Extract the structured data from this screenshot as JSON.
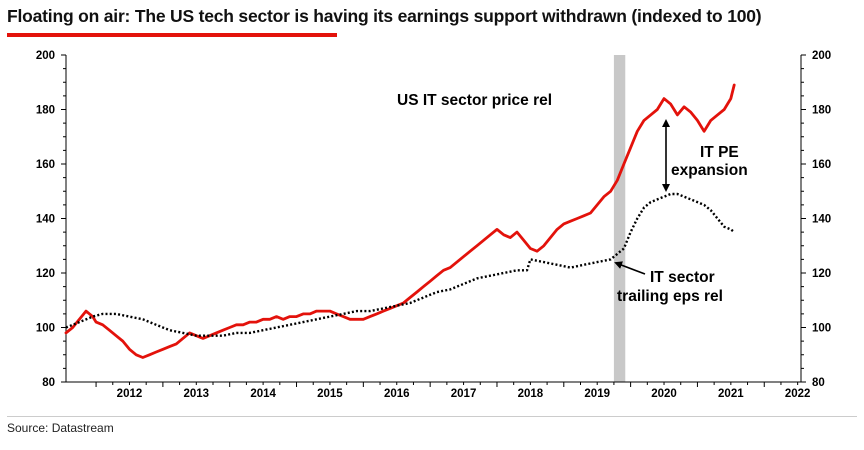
{
  "title": "Floating on air: The US tech sector is having its earnings support withdrawn (indexed to 100)",
  "source": "Source: Datastream",
  "colors": {
    "price": "#e3120b",
    "eps": "#000000",
    "shade": "#c8c8c8",
    "accent": "#e3120b"
  },
  "chart_data": {
    "type": "line",
    "title": "Floating on air: The US tech sector is having its earnings support withdrawn (indexed to 100)",
    "xlabel": "",
    "ylabel": "",
    "xlim": [
      2011.55,
      2022.55
    ],
    "ylim": [
      80,
      200
    ],
    "y_ticks": [
      80,
      100,
      120,
      140,
      160,
      180,
      200
    ],
    "x_tick_labels": [
      "2012",
      "2013",
      "2014",
      "2015",
      "2016",
      "2017",
      "2018",
      "2019",
      "2020",
      "2021",
      "2022"
    ],
    "dual_axis": true,
    "grid": false,
    "shaded_period": [
      2019.75,
      2019.92
    ],
    "series": [
      {
        "name": "US IT sector price rel",
        "style": "solid",
        "color": "#e3120b",
        "x": [
          2011.55,
          2011.65,
          2011.75,
          2011.85,
          2011.95,
          2012.0,
          2012.1,
          2012.2,
          2012.3,
          2012.4,
          2012.5,
          2012.6,
          2012.7,
          2012.8,
          2012.9,
          2013.0,
          2013.1,
          2013.2,
          2013.3,
          2013.4,
          2013.5,
          2013.6,
          2013.7,
          2013.8,
          2013.9,
          2014.0,
          2014.1,
          2014.2,
          2014.3,
          2014.4,
          2014.5,
          2014.6,
          2014.7,
          2014.8,
          2014.9,
          2015.0,
          2015.1,
          2015.2,
          2015.3,
          2015.4,
          2015.5,
          2015.6,
          2015.7,
          2015.8,
          2015.9,
          2016.0,
          2016.1,
          2016.2,
          2016.3,
          2016.4,
          2016.5,
          2016.6,
          2016.7,
          2016.8,
          2016.9,
          2017.0,
          2017.1,
          2017.2,
          2017.3,
          2017.4,
          2017.5,
          2017.6,
          2017.7,
          2017.8,
          2017.9,
          2018.0,
          2018.1,
          2018.2,
          2018.3,
          2018.4,
          2018.5,
          2018.6,
          2018.7,
          2018.8,
          2018.9,
          2019.0,
          2019.1,
          2019.2,
          2019.3,
          2019.4,
          2019.5,
          2019.6,
          2019.7,
          2019.8,
          2019.9,
          2020.0,
          2020.1,
          2020.2,
          2020.3,
          2020.4,
          2020.5,
          2020.6,
          2020.7,
          2020.8,
          2020.9,
          2021.0,
          2021.1,
          2021.2,
          2021.3,
          2021.4,
          2021.5,
          2021.55
        ],
        "values": [
          98,
          100,
          103,
          106,
          104,
          102,
          101,
          99,
          97,
          95,
          92,
          90,
          89,
          90,
          91,
          92,
          93,
          94,
          96,
          98,
          97,
          96,
          97,
          98,
          99,
          100,
          101,
          101,
          102,
          102,
          103,
          103,
          104,
          103,
          104,
          104,
          105,
          105,
          106,
          106,
          106,
          105,
          104,
          103,
          103,
          103,
          104,
          105,
          106,
          107,
          108,
          109,
          111,
          113,
          115,
          117,
          119,
          121,
          122,
          124,
          126,
          128,
          130,
          132,
          134,
          136,
          134,
          133,
          135,
          132,
          129,
          128,
          130,
          133,
          136,
          138,
          139,
          140,
          141,
          142,
          145,
          148,
          150,
          154,
          160,
          166,
          172,
          176,
          178,
          180,
          184,
          182,
          178,
          181,
          179,
          176,
          172,
          176,
          178,
          180,
          184,
          189
        ]
      },
      {
        "name": "IT sector trailing eps rel",
        "style": "dotted",
        "color": "#000000",
        "x": [
          2011.55,
          2011.75,
          2011.95,
          2012.1,
          2012.3,
          2012.5,
          2012.7,
          2012.9,
          2013.1,
          2013.3,
          2013.5,
          2013.7,
          2013.9,
          2014.1,
          2014.3,
          2014.5,
          2014.7,
          2014.9,
          2015.1,
          2015.3,
          2015.5,
          2015.7,
          2015.9,
          2016.1,
          2016.3,
          2016.5,
          2016.7,
          2016.9,
          2017.1,
          2017.3,
          2017.5,
          2017.7,
          2017.9,
          2018.1,
          2018.3,
          2018.45,
          2018.5,
          2018.7,
          2018.9,
          2019.1,
          2019.3,
          2019.5,
          2019.7,
          2019.8,
          2019.9,
          2020.0,
          2020.1,
          2020.2,
          2020.3,
          2020.4,
          2020.5,
          2020.6,
          2020.7,
          2020.8,
          2020.9,
          2021.0,
          2021.1,
          2021.2,
          2021.3,
          2021.4,
          2021.5,
          2021.55
        ],
        "values": [
          100,
          102,
          104,
          105,
          105,
          104,
          103,
          101,
          99,
          98,
          97,
          97,
          97,
          98,
          98,
          99,
          100,
          101,
          102,
          103,
          104,
          105,
          106,
          106,
          107,
          108,
          109,
          111,
          113,
          114,
          116,
          118,
          119,
          120,
          121,
          121,
          125,
          124,
          123,
          122,
          123,
          124,
          125,
          127,
          129,
          135,
          140,
          144,
          146,
          147,
          148,
          149,
          149,
          148,
          147,
          146,
          145,
          143,
          140,
          137,
          136,
          135
        ]
      }
    ],
    "annotations": [
      {
        "text": "US IT sector price rel"
      },
      {
        "text": "IT PE"
      },
      {
        "text": "expansion"
      },
      {
        "text": "IT sector"
      },
      {
        "text": "trailing eps rel"
      }
    ]
  }
}
